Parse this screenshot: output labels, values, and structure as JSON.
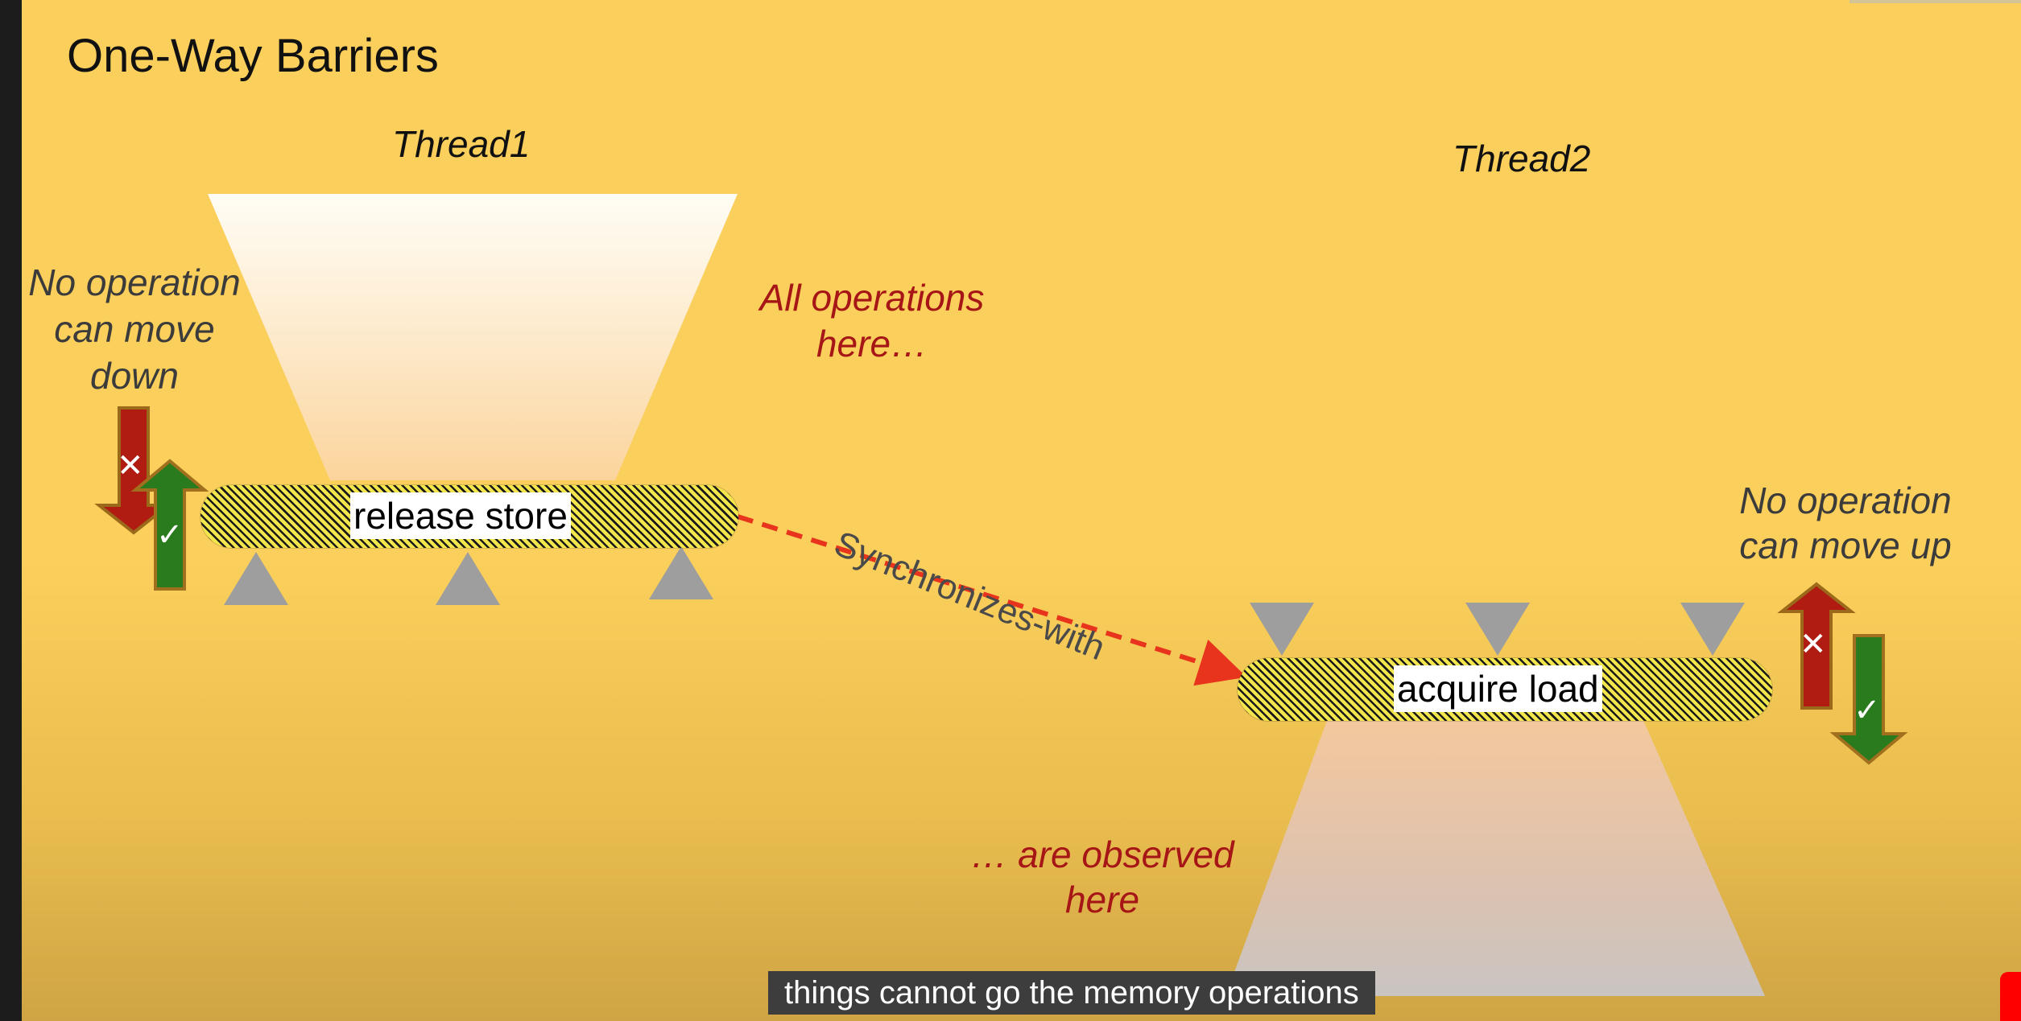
{
  "slide": {
    "title": "One-Way Barriers",
    "thread1_label": "Thread1",
    "thread2_label": "Thread2",
    "left_note": "No operation can move down",
    "right_note": "No operation can move up",
    "ops_note": "All operations here…",
    "observed_note": "… are observed here",
    "release_label": "release store",
    "acquire_label": "acquire load",
    "sync_label": "Synchronizes-with",
    "blocked_symbol": "✕",
    "allowed_symbol": "✓"
  },
  "caption": {
    "text": "things cannot go the memory operations"
  },
  "colors": {
    "background": "#fbcf5b",
    "blocked_arrow": "#b01c12",
    "allowed_arrow": "#2a7a1e",
    "sync_arrow": "#e8341c",
    "note_red": "#a61616"
  }
}
